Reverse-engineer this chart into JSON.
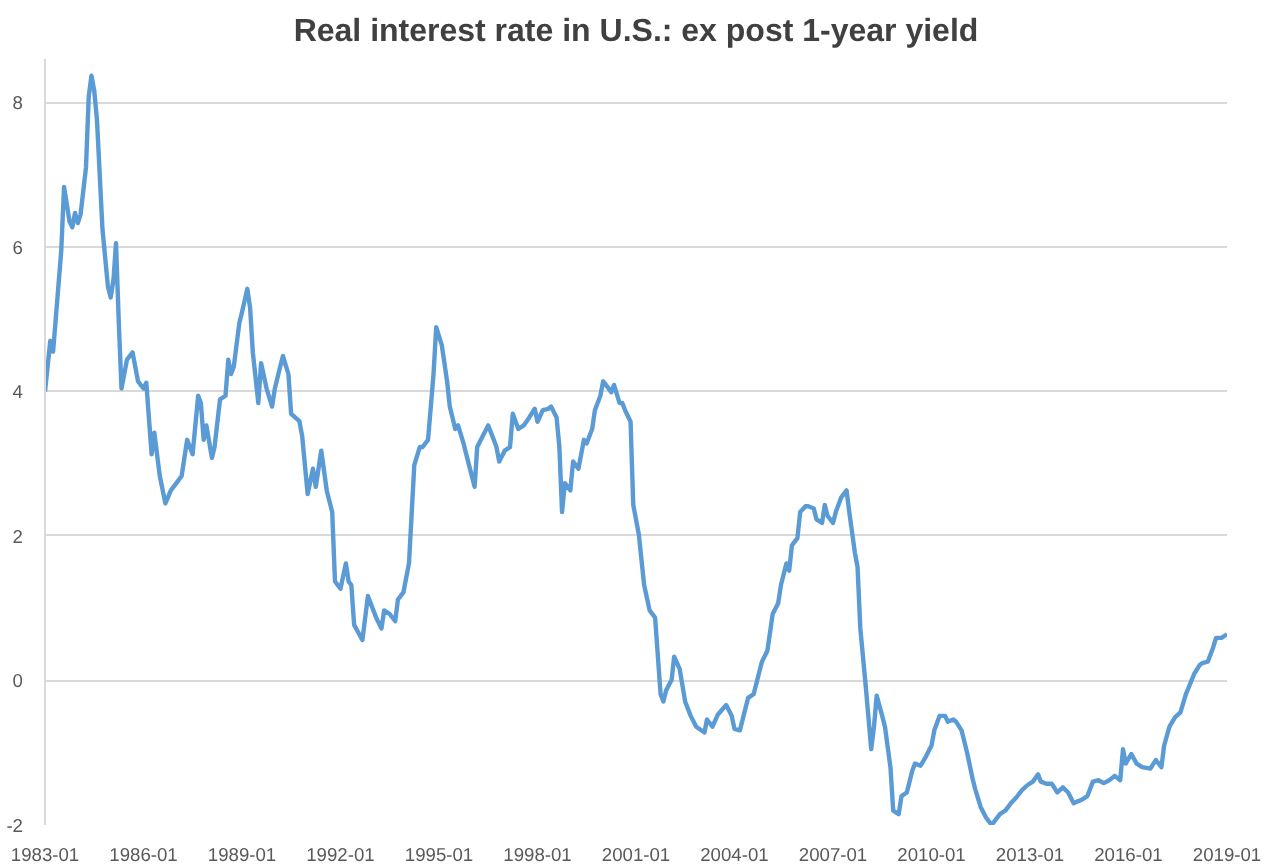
{
  "chart_data": {
    "type": "line",
    "title": "Real interest rate in U.S.: ex post 1-year yield",
    "xlim": [
      "1983-01",
      "2019-01"
    ],
    "xticks": [
      "1983-01",
      "1986-01",
      "1989-01",
      "1992-01",
      "1995-01",
      "1998-01",
      "2001-01",
      "2004-01",
      "2007-01",
      "2010-01",
      "2013-01",
      "2016-01",
      "2019-01"
    ],
    "ylim": [
      -2,
      8.6
    ],
    "yticks": [
      -2,
      0,
      2,
      4,
      6,
      8
    ],
    "grid": "y",
    "marker": "none",
    "line_style": "solid",
    "series": [
      {
        "color": "#5b9bd5",
        "x": [
          "1983-01",
          "1983-03",
          "1983-04",
          "1983-07",
          "1983-08",
          "1983-10",
          "1983-11",
          "1983-12",
          "1984-01",
          "1984-02",
          "1984-04",
          "1984-05",
          "1984-06",
          "1984-07",
          "1984-08",
          "1984-10",
          "1984-12",
          "1985-01",
          "1985-02",
          "1985-03",
          "1985-04",
          "1985-05",
          "1985-07",
          "1985-09",
          "1985-11",
          "1986-01",
          "1986-02",
          "1986-04",
          "1986-05",
          "1986-07",
          "1986-09",
          "1986-11",
          "1987-01",
          "1987-03",
          "1987-05",
          "1987-07",
          "1987-09",
          "1987-10",
          "1987-11",
          "1987-12",
          "1988-02",
          "1988-03",
          "1988-05",
          "1988-07",
          "1988-08",
          "1988-09",
          "1988-10",
          "1988-12",
          "1989-01",
          "1989-03",
          "1989-04",
          "1989-05",
          "1989-07",
          "1989-08",
          "1989-10",
          "1989-12",
          "1990-01",
          "1990-03",
          "1990-04",
          "1990-06",
          "1990-07",
          "1990-10",
          "1990-11",
          "1991-01",
          "1991-03",
          "1991-04",
          "1991-06",
          "1991-08",
          "1991-10",
          "1991-11",
          "1992-01",
          "1992-03",
          "1992-04",
          "1992-05",
          "1992-06",
          "1992-09",
          "1992-11",
          "1993-02",
          "1993-04",
          "1993-05",
          "1993-07",
          "1993-09",
          "1993-10",
          "1993-12",
          "1994-02",
          "1994-04",
          "1994-06",
          "1994-07",
          "1994-09",
          "1994-11",
          "1994-12",
          "1995-02",
          "1995-04",
          "1995-05",
          "1995-07",
          "1995-08",
          "1995-10",
          "1995-12",
          "1996-02",
          "1996-03",
          "1996-05",
          "1996-07",
          "1996-09",
          "1996-10",
          "1996-11",
          "1997-01",
          "1997-03",
          "1997-04",
          "1997-06",
          "1997-08",
          "1997-10",
          "1997-12",
          "1998-01",
          "1998-03",
          "1998-05",
          "1998-06",
          "1998-08",
          "1998-09",
          "1998-10",
          "1998-11",
          "1999-01",
          "1999-02",
          "1999-04",
          "1999-06",
          "1999-07",
          "1999-09",
          "1999-10",
          "1999-12",
          "2000-01",
          "2000-02",
          "2000-04",
          "2000-05",
          "2000-07",
          "2000-08",
          "2000-09",
          "2000-11",
          "2000-12",
          "2001-02",
          "2001-04",
          "2001-06",
          "2001-08",
          "2001-10",
          "2001-11",
          "2001-12",
          "2002-02",
          "2002-03",
          "2002-05",
          "2002-07",
          "2002-09",
          "2002-11",
          "2003-02",
          "2003-03",
          "2003-05",
          "2003-07",
          "2003-10",
          "2003-12",
          "2004-01",
          "2004-03",
          "2004-06",
          "2004-08",
          "2004-09",
          "2004-11",
          "2005-01",
          "2005-03",
          "2005-05",
          "2005-06",
          "2005-08",
          "2005-09",
          "2005-10",
          "2005-12",
          "2006-01",
          "2006-03",
          "2006-04",
          "2006-06",
          "2006-07",
          "2006-09",
          "2006-10",
          "2006-11",
          "2007-01",
          "2007-02",
          "2007-04",
          "2007-06",
          "2007-07",
          "2007-09",
          "2007-10",
          "2007-11",
          "2008-01",
          "2008-03",
          "2008-04",
          "2008-05",
          "2008-07",
          "2008-08",
          "2008-10",
          "2008-11",
          "2009-01",
          "2009-02",
          "2009-04",
          "2009-06",
          "2009-07",
          "2009-09",
          "2009-11",
          "2010-01",
          "2010-02",
          "2010-04",
          "2010-06",
          "2010-07",
          "2010-09",
          "2010-10",
          "2010-12",
          "2011-02",
          "2011-04",
          "2011-05",
          "2011-07",
          "2011-09",
          "2011-11",
          "2011-12",
          "2012-02",
          "2012-04",
          "2012-06",
          "2012-08",
          "2012-10",
          "2012-12",
          "2013-02",
          "2013-04",
          "2013-05",
          "2013-07",
          "2013-09",
          "2013-11",
          "2014-01",
          "2014-03",
          "2014-05",
          "2014-06",
          "2014-08",
          "2014-10",
          "2014-12",
          "2015-02",
          "2015-04",
          "2015-06",
          "2015-08",
          "2015-10",
          "2015-11",
          "2015-12",
          "2016-02",
          "2016-04",
          "2016-06",
          "2016-09",
          "2016-11",
          "2017-01",
          "2017-02",
          "2017-04",
          "2017-06",
          "2017-08",
          "2017-10",
          "2018-01",
          "2018-03",
          "2018-04",
          "2018-06",
          "2018-08",
          "2018-09",
          "2018-11",
          "2019-01"
        ],
        "values": [
          4.0,
          4.7,
          4.55,
          5.95,
          6.83,
          6.35,
          6.27,
          6.47,
          6.33,
          6.45,
          7.1,
          8.07,
          8.37,
          8.17,
          7.76,
          6.25,
          5.45,
          5.3,
          5.55,
          6.05,
          4.95,
          4.04,
          4.44,
          4.54,
          4.14,
          4.04,
          4.12,
          3.13,
          3.43,
          2.83,
          2.45,
          2.63,
          2.73,
          2.83,
          3.33,
          3.13,
          3.94,
          3.84,
          3.33,
          3.53,
          3.08,
          3.23,
          3.89,
          3.94,
          4.44,
          4.24,
          4.34,
          4.94,
          5.1,
          5.42,
          5.15,
          4.54,
          3.84,
          4.39,
          4.04,
          3.79,
          4.04,
          4.34,
          4.49,
          4.24,
          3.69,
          3.59,
          3.38,
          2.58,
          2.93,
          2.68,
          3.18,
          2.63,
          2.33,
          1.37,
          1.27,
          1.62,
          1.37,
          1.32,
          0.77,
          0.56,
          1.17,
          0.87,
          0.72,
          0.97,
          0.92,
          0.82,
          1.12,
          1.22,
          1.62,
          2.98,
          3.23,
          3.23,
          3.33,
          4.24,
          4.89,
          4.64,
          4.14,
          3.79,
          3.48,
          3.53,
          3.28,
          2.98,
          2.68,
          3.23,
          3.38,
          3.53,
          3.33,
          3.23,
          3.03,
          3.18,
          3.23,
          3.69,
          3.48,
          3.53,
          3.64,
          3.76,
          3.58,
          3.74,
          3.76,
          3.79,
          3.64,
          3.23,
          2.33,
          2.73,
          2.63,
          3.03,
          2.93,
          3.33,
          3.28,
          3.48,
          3.74,
          3.94,
          4.14,
          4.09,
          3.99,
          4.09,
          3.84,
          3.84,
          3.74,
          3.58,
          2.43,
          2.02,
          1.32,
          0.97,
          0.87,
          -0.19,
          -0.29,
          -0.14,
          0.01,
          0.33,
          0.16,
          -0.29,
          -0.49,
          -0.64,
          -0.72,
          -0.54,
          -0.64,
          -0.47,
          -0.34,
          -0.49,
          -0.67,
          -0.69,
          -0.24,
          -0.19,
          -0.04,
          0.26,
          0.41,
          0.92,
          1.07,
          1.32,
          1.62,
          1.52,
          1.87,
          1.97,
          2.33,
          2.41,
          2.41,
          2.38,
          2.23,
          2.18,
          2.43,
          2.28,
          2.18,
          2.33,
          2.53,
          2.63,
          2.33,
          1.77,
          1.57,
          0.72,
          -0.09,
          -0.95,
          -0.64,
          -0.21,
          -0.49,
          -0.64,
          -1.2,
          -1.8,
          -1.85,
          -1.6,
          -1.55,
          -1.25,
          -1.15,
          -1.18,
          -1.05,
          -0.9,
          -0.69,
          -0.49,
          -0.49,
          -0.57,
          -0.54,
          -0.57,
          -0.69,
          -1.0,
          -1.35,
          -1.5,
          -1.75,
          -1.9,
          -2.0,
          -1.95,
          -1.85,
          -1.8,
          -1.7,
          -1.62,
          -1.52,
          -1.45,
          -1.4,
          -1.3,
          -1.4,
          -1.43,
          -1.43,
          -1.55,
          -1.48,
          -1.55,
          -1.7,
          -1.68,
          -1.65,
          -1.6,
          -1.4,
          -1.38,
          -1.42,
          -1.38,
          -1.32,
          -1.38,
          -0.95,
          -1.15,
          -1.02,
          -1.15,
          -1.2,
          -1.22,
          -1.1,
          -1.2,
          -0.9,
          -0.64,
          -0.51,
          -0.44,
          -0.19,
          0.09,
          0.21,
          0.24,
          0.26,
          0.46,
          0.59,
          0.59,
          0.64
        ]
      }
    ]
  }
}
